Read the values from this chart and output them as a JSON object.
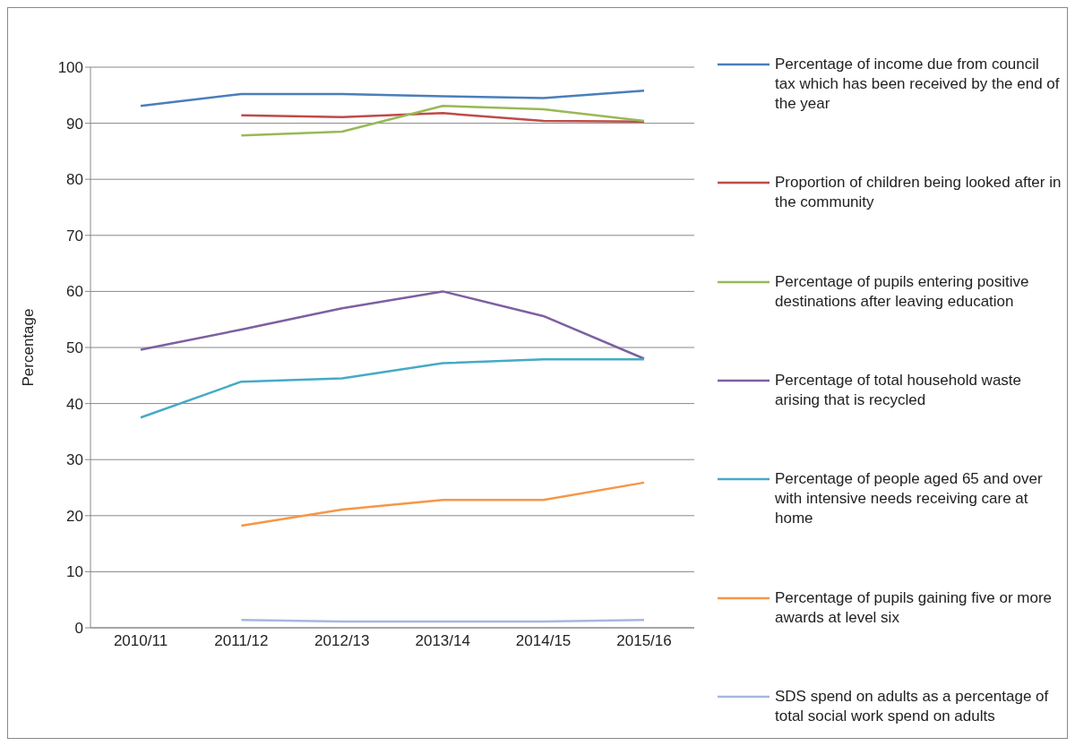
{
  "chart_data": {
    "type": "line",
    "ylabel": "Percentage",
    "categories": [
      "2010/11",
      "2011/12",
      "2012/13",
      "2013/14",
      "2014/15",
      "2015/16"
    ],
    "series": [
      {
        "name": "Percentage of income due from council tax which has been received by the end of the year",
        "color": "#4a7ebb",
        "values": [
          93.1,
          95.2,
          95.2,
          94.8,
          94.5,
          95.8
        ]
      },
      {
        "name": "Proportion of children being looked after in the community",
        "color": "#be4b48",
        "values": [
          null,
          91.4,
          91.1,
          91.8,
          90.4,
          90.3
        ]
      },
      {
        "name": "Percentage of pupils entering positive destinations after leaving education",
        "color": "#98b954",
        "values": [
          null,
          87.8,
          88.5,
          93.1,
          92.5,
          90.4
        ]
      },
      {
        "name": "Percentage of total household waste arising that is recycled",
        "color": "#7d60a0",
        "values": [
          49.6,
          53.2,
          57,
          60,
          55.6,
          48
        ]
      },
      {
        "name": "Percentage of people aged 65 and over with intensive needs receiving care at home",
        "color": "#46aac5",
        "values": [
          37.5,
          43.9,
          44.5,
          47.2,
          47.9,
          47.9
        ]
      },
      {
        "name": "Percentage of pupils gaining five or more awards at level six",
        "color": "#f79646",
        "values": [
          null,
          18.2,
          21.1,
          22.8,
          22.8,
          25.9
        ]
      },
      {
        "name": "SDS spend on adults as a percentage of total social work spend on adults",
        "color": "#a5b8e0",
        "values": [
          null,
          1.4,
          1.1,
          1.1,
          1.1,
          1.4
        ]
      }
    ],
    "ylim": [
      0,
      100
    ],
    "yticks": [
      0,
      10,
      20,
      30,
      40,
      50,
      60,
      70,
      80,
      90,
      100
    ],
    "grid": "y",
    "legend": "right",
    "marker": "none",
    "line_style": "solid"
  }
}
